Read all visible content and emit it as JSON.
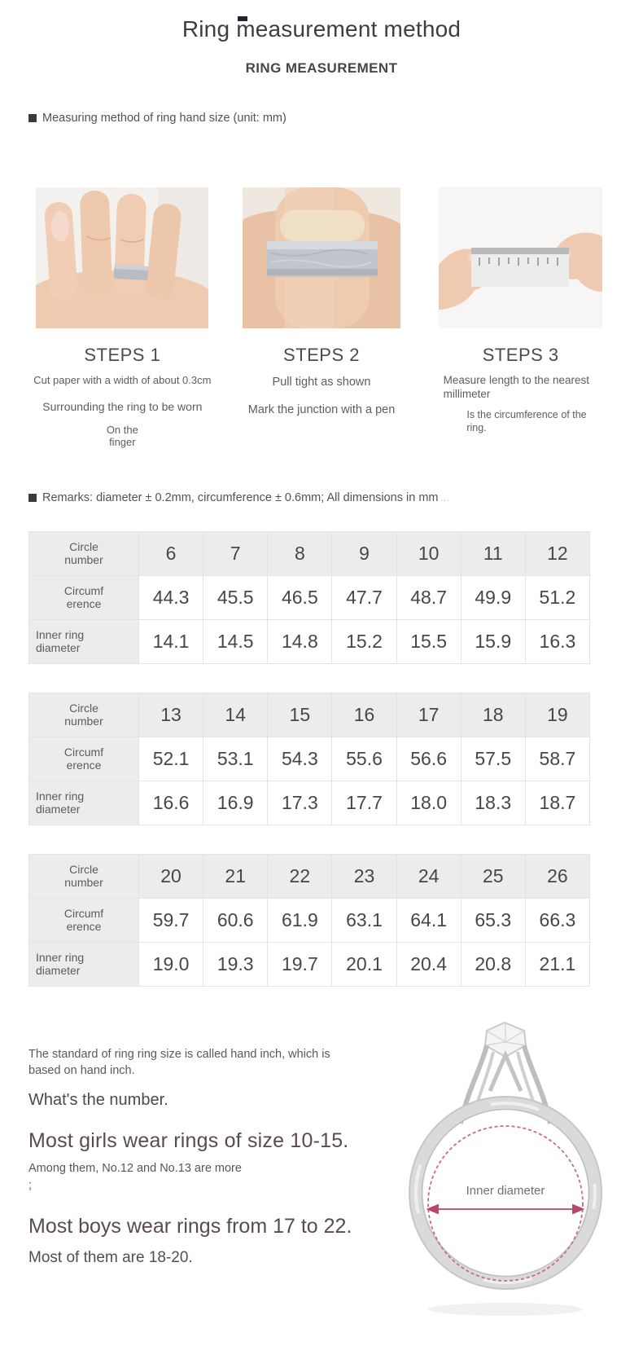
{
  "page": {
    "title": "Ring measurement method",
    "subtitle": "RING MEASUREMENT"
  },
  "measuring": {
    "heading": "Measuring method of ring hand size (unit: mm)",
    "steps": [
      {
        "title": "STEPS 1",
        "lines": [
          "Cut paper with a width of about 0.3cm",
          "Surrounding the ring to be worn",
          "On the finger"
        ]
      },
      {
        "title": "STEPS 2",
        "lines": [
          "Pull tight as shown",
          "Mark the junction with a pen"
        ]
      },
      {
        "title": "STEPS 3",
        "lines": [
          "Measure length to the nearest millimeter",
          "Is the circumference of the ring."
        ]
      }
    ]
  },
  "remarks": {
    "text": "Remarks: diameter ± 0.2mm, circumference ± 0.6mm; All dimensions in mm",
    "trailing": "..."
  },
  "size_tables": [
    {
      "rows": [
        {
          "label": [
            "Circle",
            "number"
          ],
          "values": [
            "6",
            "7",
            "8",
            "9",
            "10",
            "11",
            "12"
          ]
        },
        {
          "label": [
            "Circumf",
            "erence"
          ],
          "values": [
            "44.3",
            "45.5",
            "46.5",
            "47.7",
            "48.7",
            "49.9",
            "51.2"
          ]
        },
        {
          "label": [
            "Inner ring",
            "diameter"
          ],
          "values": [
            "14.1",
            "14.5",
            "14.8",
            "15.2",
            "15.5",
            "15.9",
            "16.3"
          ]
        }
      ]
    },
    {
      "rows": [
        {
          "label": [
            "Circle",
            "number"
          ],
          "values": [
            "13",
            "14",
            "15",
            "16",
            "17",
            "18",
            "19"
          ]
        },
        {
          "label": [
            "Circumf",
            "erence"
          ],
          "values": [
            "52.1",
            "53.1",
            "54.3",
            "55.6",
            "56.6",
            "57.5",
            "58.7"
          ]
        },
        {
          "label": [
            "Inner ring",
            "diameter"
          ],
          "values": [
            "16.6",
            "16.9",
            "17.3",
            "17.7",
            "18.0",
            "18.3",
            "18.7"
          ]
        }
      ]
    },
    {
      "rows": [
        {
          "label": [
            "Circle",
            "number"
          ],
          "values": [
            "20",
            "21",
            "22",
            "23",
            "24",
            "25",
            "26"
          ]
        },
        {
          "label": [
            "Circumf",
            "erence"
          ],
          "values": [
            "59.7",
            "60.6",
            "61.9",
            "63.1",
            "64.1",
            "65.3",
            "66.3"
          ]
        },
        {
          "label": [
            "Inner ring",
            "diameter"
          ],
          "values": [
            "19.0",
            "19.3",
            "19.7",
            "20.1",
            "20.4",
            "20.8",
            "21.1"
          ]
        }
      ]
    }
  ],
  "bottom": {
    "intro": "The standard of ring ring size is called hand inch, which is based on hand inch.",
    "question": "What's the number.",
    "girls": "Most girls wear rings of size 10-15.",
    "girls_note": "Among them, No.12 and No.13 are more\n;",
    "boys": "Most boys wear rings from 17 to 22.",
    "boys_note": "Most of them are 18-20."
  },
  "ring_diagram": {
    "label": "Inner diameter",
    "accent_color": "#b5456a",
    "metal_color": "#d9d9d9"
  }
}
